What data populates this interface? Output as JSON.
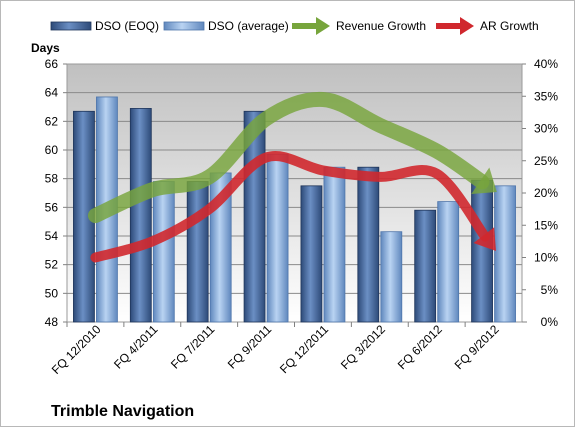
{
  "chart_data": {
    "type": "bar",
    "title": "Trimble Navigation",
    "ylabel": "Days",
    "categories": [
      "FQ 12/2010",
      "FQ 4/2011",
      "FQ 7/2011",
      "FQ 9/2011",
      "FQ 12/2011",
      "FQ 3/2012",
      "FQ 6/2012",
      "FQ 9/2012"
    ],
    "ylim": [
      48,
      66
    ],
    "yticks": [
      "48",
      "50",
      "52",
      "54",
      "56",
      "58",
      "60",
      "62",
      "64",
      "66"
    ],
    "y2lim": [
      0,
      40
    ],
    "y2ticks": [
      "0%",
      "5%",
      "10%",
      "15%",
      "20%",
      "25%",
      "30%",
      "35%",
      "40%"
    ],
    "grid": true,
    "legend_position": "top",
    "series": [
      {
        "name": "DSO (EOQ)",
        "kind": "bar",
        "axis": "left",
        "color": "#4a6fa5",
        "values": [
          62.7,
          62.9,
          57.8,
          62.7,
          57.5,
          58.8,
          55.8,
          57.9
        ]
      },
      {
        "name": "DSO (average)",
        "kind": "bar",
        "axis": "left",
        "color": "#8fb4e3",
        "values": [
          63.7,
          57.8,
          58.4,
          59.7,
          58.8,
          54.3,
          56.4,
          57.5
        ]
      },
      {
        "name": "Revenue Growth",
        "kind": "line",
        "axis": "right",
        "color": "#77a53c",
        "values": [
          16.5,
          20.5,
          22.5,
          31.5,
          34.5,
          30.5,
          26.5,
          20.5
        ]
      },
      {
        "name": "AR Growth",
        "kind": "line",
        "axis": "right",
        "color": "#d0282e",
        "values": [
          10.0,
          12.5,
          17.5,
          25.5,
          23.5,
          22.5,
          23.0,
          11.5
        ]
      }
    ]
  }
}
